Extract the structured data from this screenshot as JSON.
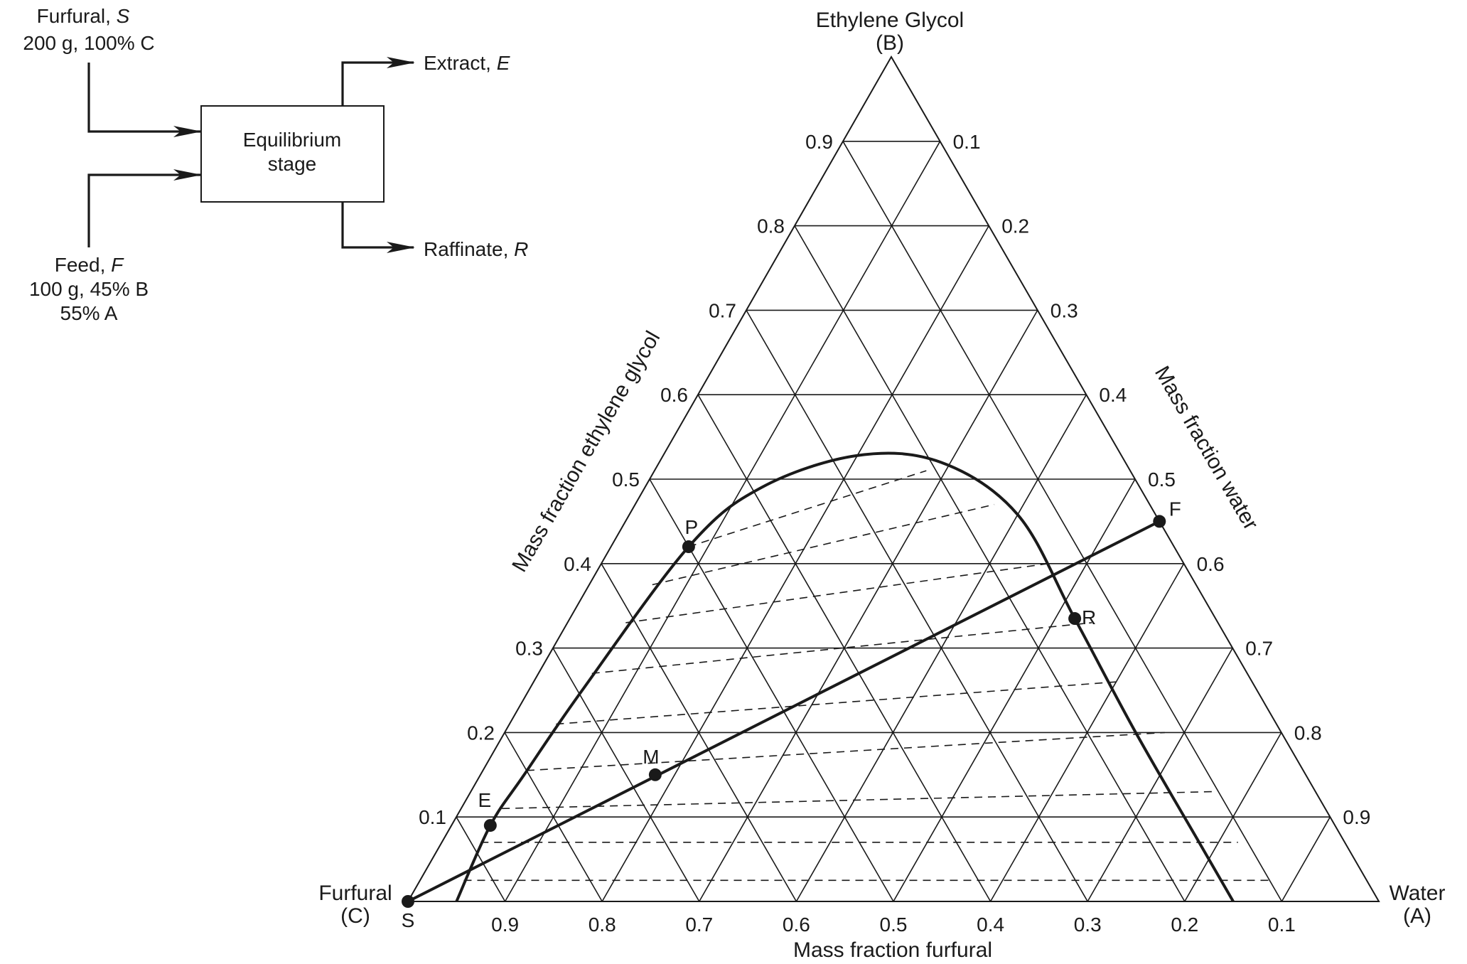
{
  "flow_diagram": {
    "solvent": {
      "name": "Furfural, ",
      "symbol": "S",
      "detail": "200 g, 100% C"
    },
    "feed": {
      "name": "Feed, ",
      "symbol": "F",
      "detail1": "100 g, 45% B",
      "detail2": "55% A"
    },
    "stage": {
      "line1": "Equilibrium",
      "line2": "stage"
    },
    "extract": {
      "name": "Extract, ",
      "symbol": "E"
    },
    "raffinate": {
      "name": "Raffinate, ",
      "symbol": "R"
    }
  },
  "ternary": {
    "apex_top": {
      "line1": "Ethylene Glycol",
      "line2": "(B)"
    },
    "apex_left": {
      "line1": "Furfural",
      "line2": "(C)"
    },
    "apex_right": {
      "line1": "Water",
      "line2": "(A)"
    },
    "left_axis_title": "Mass fraction ethylene glycol",
    "right_axis_title": "Mass fraction water",
    "bottom_axis_title": "Mass fraction furfural",
    "left_ticks": [
      "0.1",
      "0.2",
      "0.3",
      "0.4",
      "0.5",
      "0.6",
      "0.7",
      "0.8",
      "0.9"
    ],
    "right_ticks": [
      "0.1",
      "0.2",
      "0.3",
      "0.4",
      "0.5",
      "0.6",
      "0.7",
      "0.8",
      "0.9"
    ],
    "bottom_ticks": [
      "0.9",
      "0.8",
      "0.7",
      "0.6",
      "0.5",
      "0.4",
      "0.3",
      "0.2",
      "0.1"
    ],
    "points": [
      {
        "label": "S",
        "water": 0.0,
        "glycol": 0.0
      },
      {
        "label": "E",
        "water": 0.04,
        "glycol": 0.09
      },
      {
        "label": "M",
        "water": 0.18,
        "glycol": 0.15
      },
      {
        "label": "P",
        "water": 0.08,
        "glycol": 0.42
      },
      {
        "label": "R",
        "water": 0.52,
        "glycol": 0.335
      },
      {
        "label": "F",
        "water": 0.55,
        "glycol": 0.45
      }
    ],
    "binodal_curve": [
      {
        "water": 0.05,
        "glycol": 0.0
      },
      {
        "water": 0.04,
        "glycol": 0.09
      },
      {
        "water": 0.045,
        "glycol": 0.15
      },
      {
        "water": 0.055,
        "glycol": 0.25
      },
      {
        "water": 0.08,
        "glycol": 0.42
      },
      {
        "water": 0.12,
        "glycol": 0.49
      },
      {
        "water": 0.2,
        "glycol": 0.528
      },
      {
        "water": 0.29,
        "glycol": 0.52
      },
      {
        "water": 0.4,
        "glycol": 0.458
      },
      {
        "water": 0.52,
        "glycol": 0.335
      },
      {
        "water": 0.65,
        "glycol": 0.2
      },
      {
        "water": 0.78,
        "glycol": 0.07
      },
      {
        "water": 0.85,
        "glycol": 0.0
      }
    ],
    "tie_lines": [
      {
        "from": {
          "water": 0.045,
          "glycol": 0.025
        },
        "to": {
          "water": 0.875,
          "glycol": 0.025
        }
      },
      {
        "from": {
          "water": 0.04,
          "glycol": 0.07
        },
        "to": {
          "water": 0.82,
          "glycol": 0.07
        }
      },
      {
        "from": {
          "water": 0.042,
          "glycol": 0.11
        },
        "to": {
          "water": 0.764,
          "glycol": 0.13
        }
      },
      {
        "from": {
          "water": 0.045,
          "glycol": 0.155
        },
        "to": {
          "water": 0.68,
          "glycol": 0.2
        }
      },
      {
        "from": {
          "water": 0.048,
          "glycol": 0.21
        },
        "to": {
          "water": 0.6,
          "glycol": 0.26
        }
      },
      {
        "from": {
          "water": 0.055,
          "glycol": 0.27
        },
        "to": {
          "water": 0.54,
          "glycol": 0.33
        }
      },
      {
        "from": {
          "water": 0.06,
          "glycol": 0.33
        },
        "to": {
          "water": 0.46,
          "glycol": 0.4
        }
      },
      {
        "from": {
          "water": 0.065,
          "glycol": 0.375
        },
        "to": {
          "water": 0.37,
          "glycol": 0.47
        }
      },
      {
        "from": {
          "water": 0.08,
          "glycol": 0.42
        },
        "to": {
          "water": 0.28,
          "glycol": 0.51
        }
      }
    ],
    "operating_line": {
      "from": "S",
      "to": "F"
    }
  }
}
